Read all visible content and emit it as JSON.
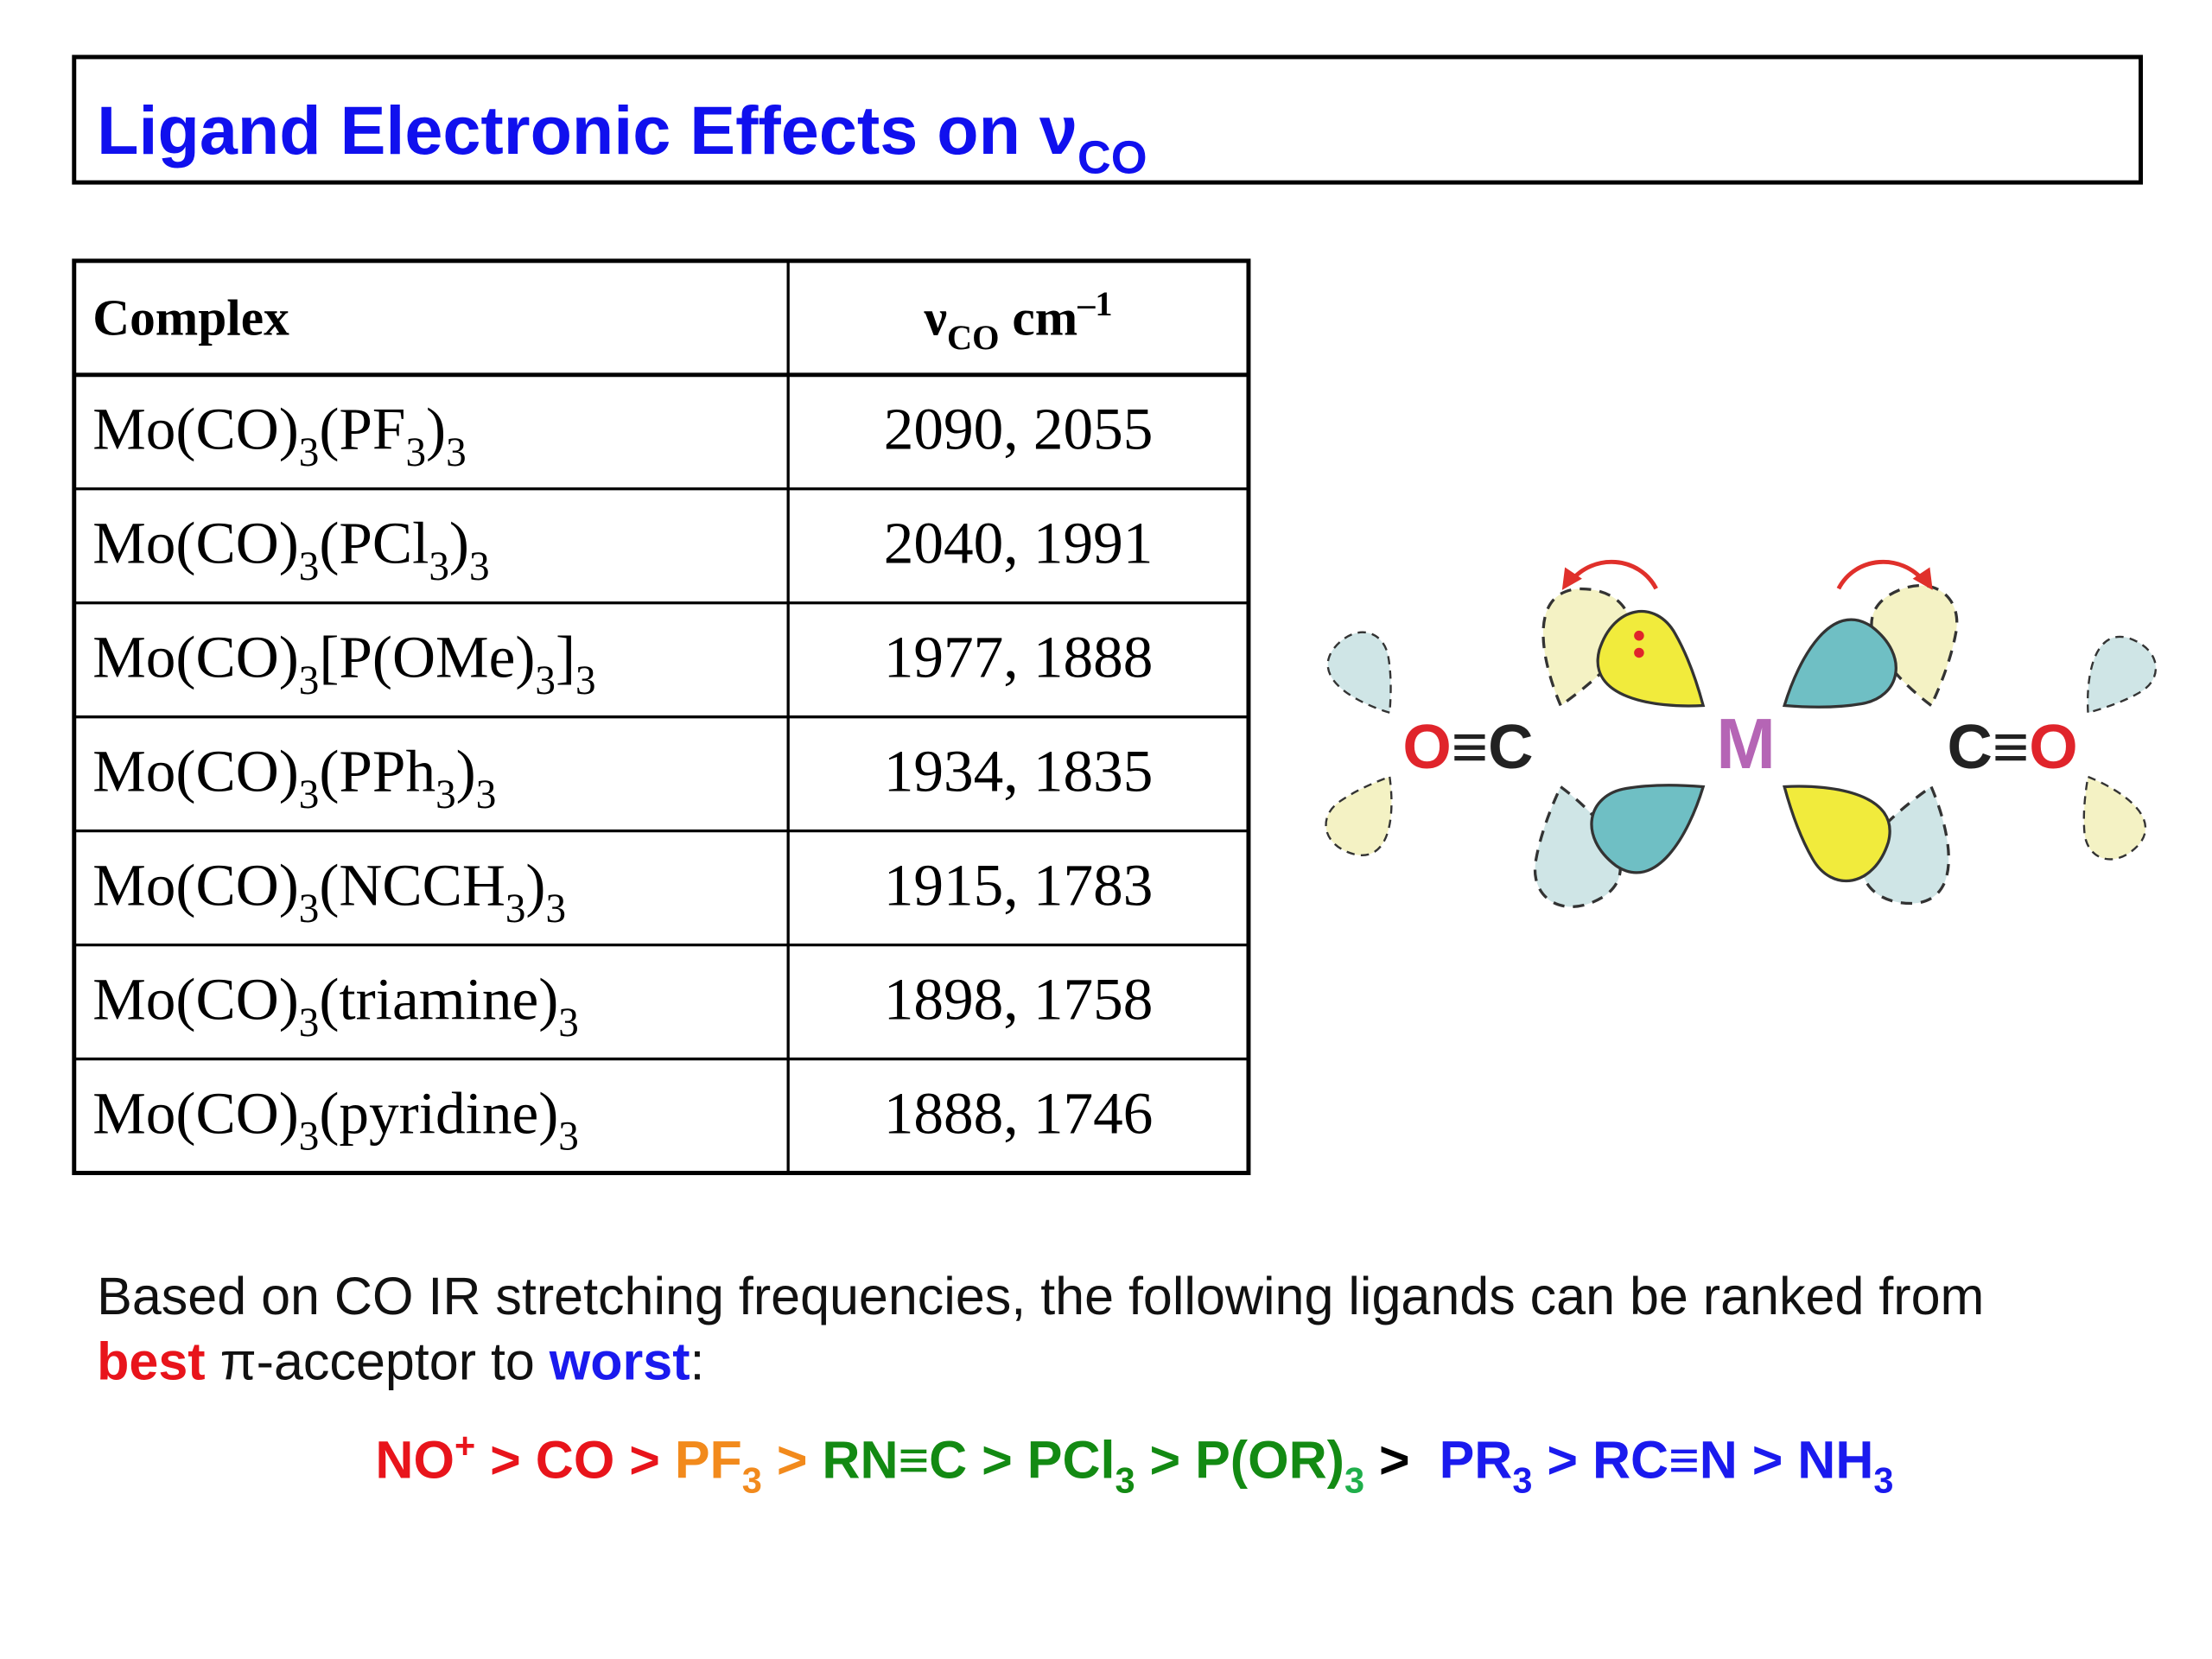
{
  "title": [
    {
      "t": "Ligand Electronic Effects on ν"
    },
    {
      "sub": "CO"
    }
  ],
  "table": {
    "header": [
      [
        {
          "t": "Complex"
        }
      ],
      [
        {
          "t": "ν"
        },
        {
          "sub": "CO"
        },
        {
          "t": " cm"
        },
        {
          "sup": "–1"
        }
      ]
    ],
    "rows": [
      [
        [
          {
            "t": "Mo(CO)"
          },
          {
            "sub": "3"
          },
          {
            "t": "(PF"
          },
          {
            "sub": "3"
          },
          {
            "t": ")"
          },
          {
            "sub": "3"
          }
        ],
        [
          {
            "t": "2090, 2055"
          }
        ]
      ],
      [
        [
          {
            "t": "Mo(CO)"
          },
          {
            "sub": "3"
          },
          {
            "t": "(PCl"
          },
          {
            "sub": "3"
          },
          {
            "t": ")"
          },
          {
            "sub": "3"
          }
        ],
        [
          {
            "t": "2040, 1991"
          }
        ]
      ],
      [
        [
          {
            "t": "Mo(CO)"
          },
          {
            "sub": "3"
          },
          {
            "t": "[P(OMe)"
          },
          {
            "sub": "3"
          },
          {
            "t": "]"
          },
          {
            "sub": "3"
          }
        ],
        [
          {
            "t": "1977, 1888"
          }
        ]
      ],
      [
        [
          {
            "t": "Mo(CO)"
          },
          {
            "sub": "3"
          },
          {
            "t": "(PPh"
          },
          {
            "sub": "3"
          },
          {
            "t": ")"
          },
          {
            "sub": "3"
          }
        ],
        [
          {
            "t": "1934, 1835"
          }
        ]
      ],
      [
        [
          {
            "t": "Mo(CO)"
          },
          {
            "sub": "3"
          },
          {
            "t": "(NCCH"
          },
          {
            "sub": "3"
          },
          {
            "t": ")"
          },
          {
            "sub": "3"
          }
        ],
        [
          {
            "t": "1915, 1783"
          }
        ]
      ],
      [
        [
          {
            "t": "Mo(CO)"
          },
          {
            "sub": "3"
          },
          {
            "t": "(triamine)"
          },
          {
            "sub": "3"
          }
        ],
        [
          {
            "t": "1898, 1758"
          }
        ]
      ],
      [
        [
          {
            "t": "Mo(CO)"
          },
          {
            "sub": "3"
          },
          {
            "t": "(pyridine)"
          },
          {
            "sub": "3"
          }
        ],
        [
          {
            "t": "1888, 1746"
          }
        ]
      ]
    ]
  },
  "diagram": {
    "left": [
      {
        "t": "O",
        "color": "#e0242b"
      },
      {
        "t": "≡C",
        "color": "#222222"
      }
    ],
    "metal": [
      {
        "t": "M",
        "color": "#b565b5"
      }
    ],
    "right": [
      {
        "t": "C≡",
        "color": "#222222"
      },
      {
        "t": "O",
        "color": "#e0242b"
      }
    ]
  },
  "note": {
    "lines": [
      [
        {
          "t": "Based on CO IR stretching frequencies, the following ligands can be ranked from"
        }
      ],
      [
        {
          "t": "best",
          "color": "#e8141b",
          "bold": true
        },
        {
          "t": " π-acceptor to "
        },
        {
          "t": "worst",
          "color": "#1a1aee",
          "bold": true
        },
        {
          "t": ":"
        }
      ]
    ]
  },
  "ranking": [
    {
      "t": "NO",
      "color": "#e8141b"
    },
    {
      "sup": "+",
      "color": "#e8141b"
    },
    {
      "t": " > CO > ",
      "color": "#e8141b"
    },
    {
      "t": "PF",
      "color": "#f28a1c"
    },
    {
      "sub": "3",
      "color": "#f28a1c"
    },
    {
      "t": " > ",
      "color": "#f28a1c"
    },
    {
      "t": "RN≡C > PCl",
      "color": "#138a13"
    },
    {
      "sub": "3",
      "color": "#138a13"
    },
    {
      "t": " > P(OR)",
      "color": "#138a13"
    },
    {
      "sub": "3",
      "color": "#1fae4a"
    },
    {
      "t": " >  ",
      "color": "#000000"
    },
    {
      "t": "PR",
      "color": "#1a1aee"
    },
    {
      "sub": "3",
      "color": "#1a1aee"
    },
    {
      "t": " > RC≡N > NH",
      "color": "#1a1aee"
    },
    {
      "sub": "3",
      "color": "#1a1aee"
    }
  ]
}
